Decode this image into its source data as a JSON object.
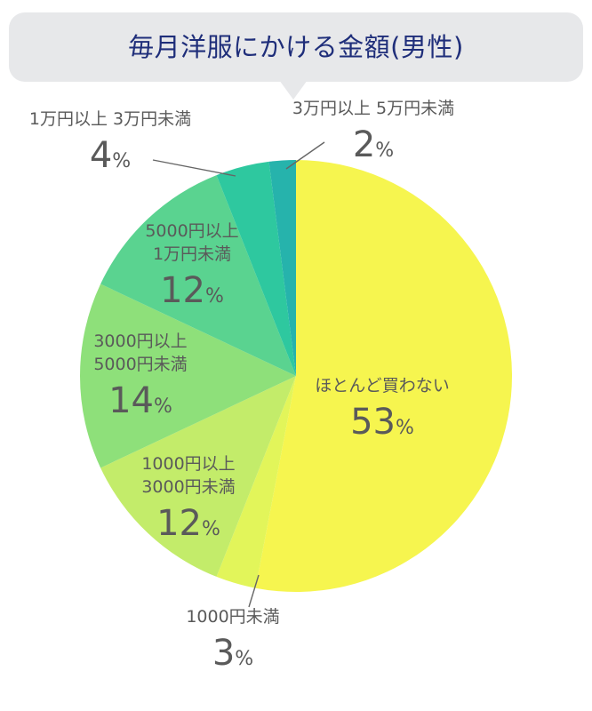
{
  "title": "毎月洋服にかける金額(男性)",
  "chart_data": {
    "type": "pie",
    "title": "毎月洋服にかける金額(男性)",
    "slices": [
      {
        "label_lines": [
          "ほとんど買わない"
        ],
        "value": 53,
        "pct_text": "53",
        "color": "#f6f54f"
      },
      {
        "label_lines": [
          "1000円未満"
        ],
        "value": 3,
        "pct_text": "3",
        "color": "#e2f55a"
      },
      {
        "label_lines": [
          "1000円以上",
          "3000円未満"
        ],
        "value": 12,
        "pct_text": "12",
        "color": "#c3ec6a"
      },
      {
        "label_lines": [
          "3000円以上",
          "5000円未満"
        ],
        "value": 14,
        "pct_text": "14",
        "color": "#8ee07a"
      },
      {
        "label_lines": [
          "5000円以上",
          "1万円未満"
        ],
        "value": 12,
        "pct_text": "12",
        "color": "#5ad390"
      },
      {
        "label_lines": [
          "1万円以上 3万円未満"
        ],
        "value": 4,
        "pct_text": "4",
        "color": "#2ec89f"
      },
      {
        "label_lines": [
          "3万円以上 5万円未満"
        ],
        "value": 2,
        "pct_text": "2",
        "color": "#26b3ac"
      }
    ],
    "percent_sign": "%"
  }
}
